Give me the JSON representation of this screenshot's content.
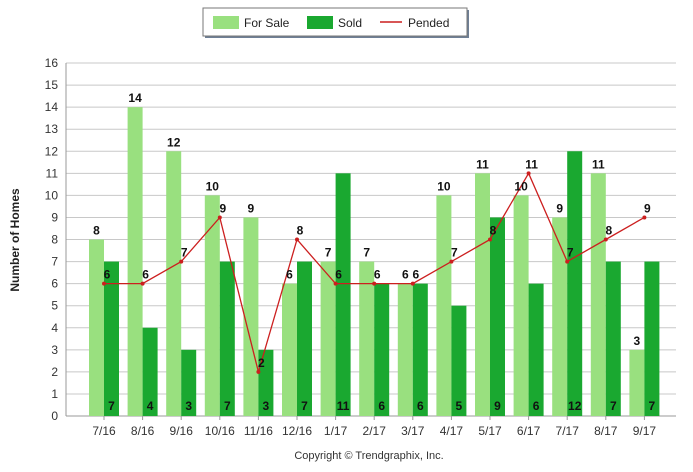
{
  "chart_data": {
    "type": "bar",
    "categories": [
      "7/16",
      "8/16",
      "9/16",
      "10/16",
      "11/16",
      "12/16",
      "1/17",
      "2/17",
      "3/17",
      "4/17",
      "5/17",
      "6/17",
      "7/17",
      "8/17",
      "9/17"
    ],
    "series": [
      {
        "name": "For Sale",
        "type": "bar",
        "color": "#99e07f",
        "values": [
          8,
          14,
          12,
          10,
          9,
          6,
          7,
          7,
          6,
          10,
          11,
          10,
          9,
          11,
          3
        ]
      },
      {
        "name": "Sold",
        "type": "bar",
        "color": "#1aa830",
        "values": [
          7,
          4,
          3,
          7,
          3,
          7,
          11,
          6,
          6,
          5,
          9,
          6,
          12,
          7,
          7
        ]
      },
      {
        "name": "Pended",
        "type": "line",
        "color": "#cc1f1f",
        "values": [
          6,
          6,
          7,
          9,
          2,
          8,
          6,
          6,
          6,
          7,
          8,
          11,
          7,
          8,
          9
        ]
      }
    ],
    "xlabel": "",
    "ylabel": "Number of Homes",
    "ylim": [
      0,
      16
    ],
    "yticks": [
      0,
      1,
      2,
      3,
      4,
      5,
      6,
      7,
      8,
      9,
      10,
      11,
      12,
      13,
      14,
      15,
      16
    ],
    "grid": true,
    "legend_position": "top-center"
  },
  "footer": {
    "copyright": "Copyright © Trendgraphix, Inc."
  }
}
